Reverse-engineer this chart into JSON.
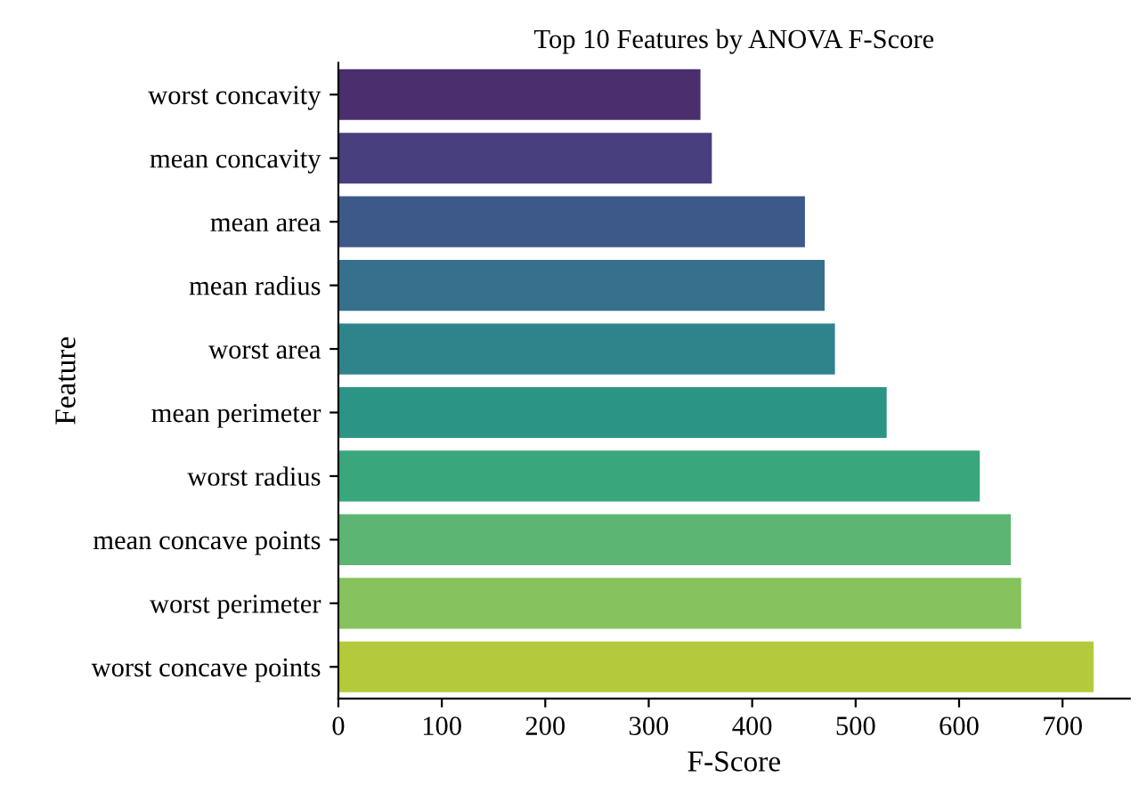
{
  "chart_data": {
    "type": "bar",
    "orientation": "horizontal",
    "title": "Top 10 Features by ANOVA F-Score",
    "xlabel": "F-Score",
    "ylabel": "Feature",
    "categories": [
      "worst concavity",
      "mean concavity",
      "mean area",
      "mean radius",
      "worst area",
      "mean perimeter",
      "worst radius",
      "mean concave points",
      "worst perimeter",
      "worst concave points"
    ],
    "values": [
      350,
      361,
      451,
      470,
      480,
      530,
      620,
      650,
      660,
      730
    ],
    "colors": [
      "#4b2e6e",
      "#473f7e",
      "#3d598a",
      "#36708c",
      "#2f838a",
      "#2b9485",
      "#39a67c",
      "#5cb572",
      "#86c25d",
      "#b5ca3a"
    ],
    "xlim": [
      0,
      765
    ],
    "xticks": [
      0,
      100,
      200,
      300,
      400,
      500,
      600,
      700
    ],
    "grid": false,
    "legend": false
  }
}
